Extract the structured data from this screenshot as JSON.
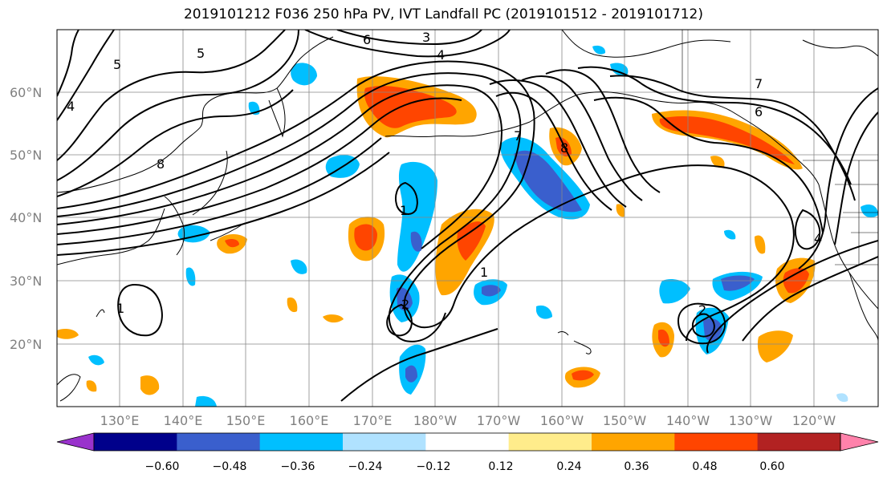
{
  "title": "2019101212 F036 250 hPa PV, IVT Landfall PC (2019101512 - 2019101712)",
  "map": {
    "lat_labels": [
      "60°N",
      "50°N",
      "40°N",
      "30°N",
      "20°N"
    ],
    "lon_labels": [
      "130°E",
      "140°E",
      "150°E",
      "160°E",
      "170°E",
      "180°W",
      "170°W",
      "160°W",
      "150°W",
      "140°W",
      "130°W",
      "120°W"
    ],
    "pv_contour_labels": [
      "5",
      "6",
      "3",
      "4",
      "8",
      "7",
      "8",
      "7",
      "6",
      "5",
      "1",
      "4",
      "1",
      "1",
      "2",
      "2",
      "4"
    ]
  },
  "colorbar": {
    "tick_labels": [
      "−0.60",
      "−0.48",
      "−0.36",
      "−0.24",
      "−0.12",
      "0.12",
      "0.24",
      "0.36",
      "0.48",
      "0.60"
    ],
    "colors": [
      "#9932cc",
      "#00008b",
      "#3a5fcd",
      "#00bfff",
      "#b0e2ff",
      "#ffffff",
      "#ffec8b",
      "#ffa500",
      "#ff4500",
      "#b22222",
      "#ff82ab"
    ]
  }
}
